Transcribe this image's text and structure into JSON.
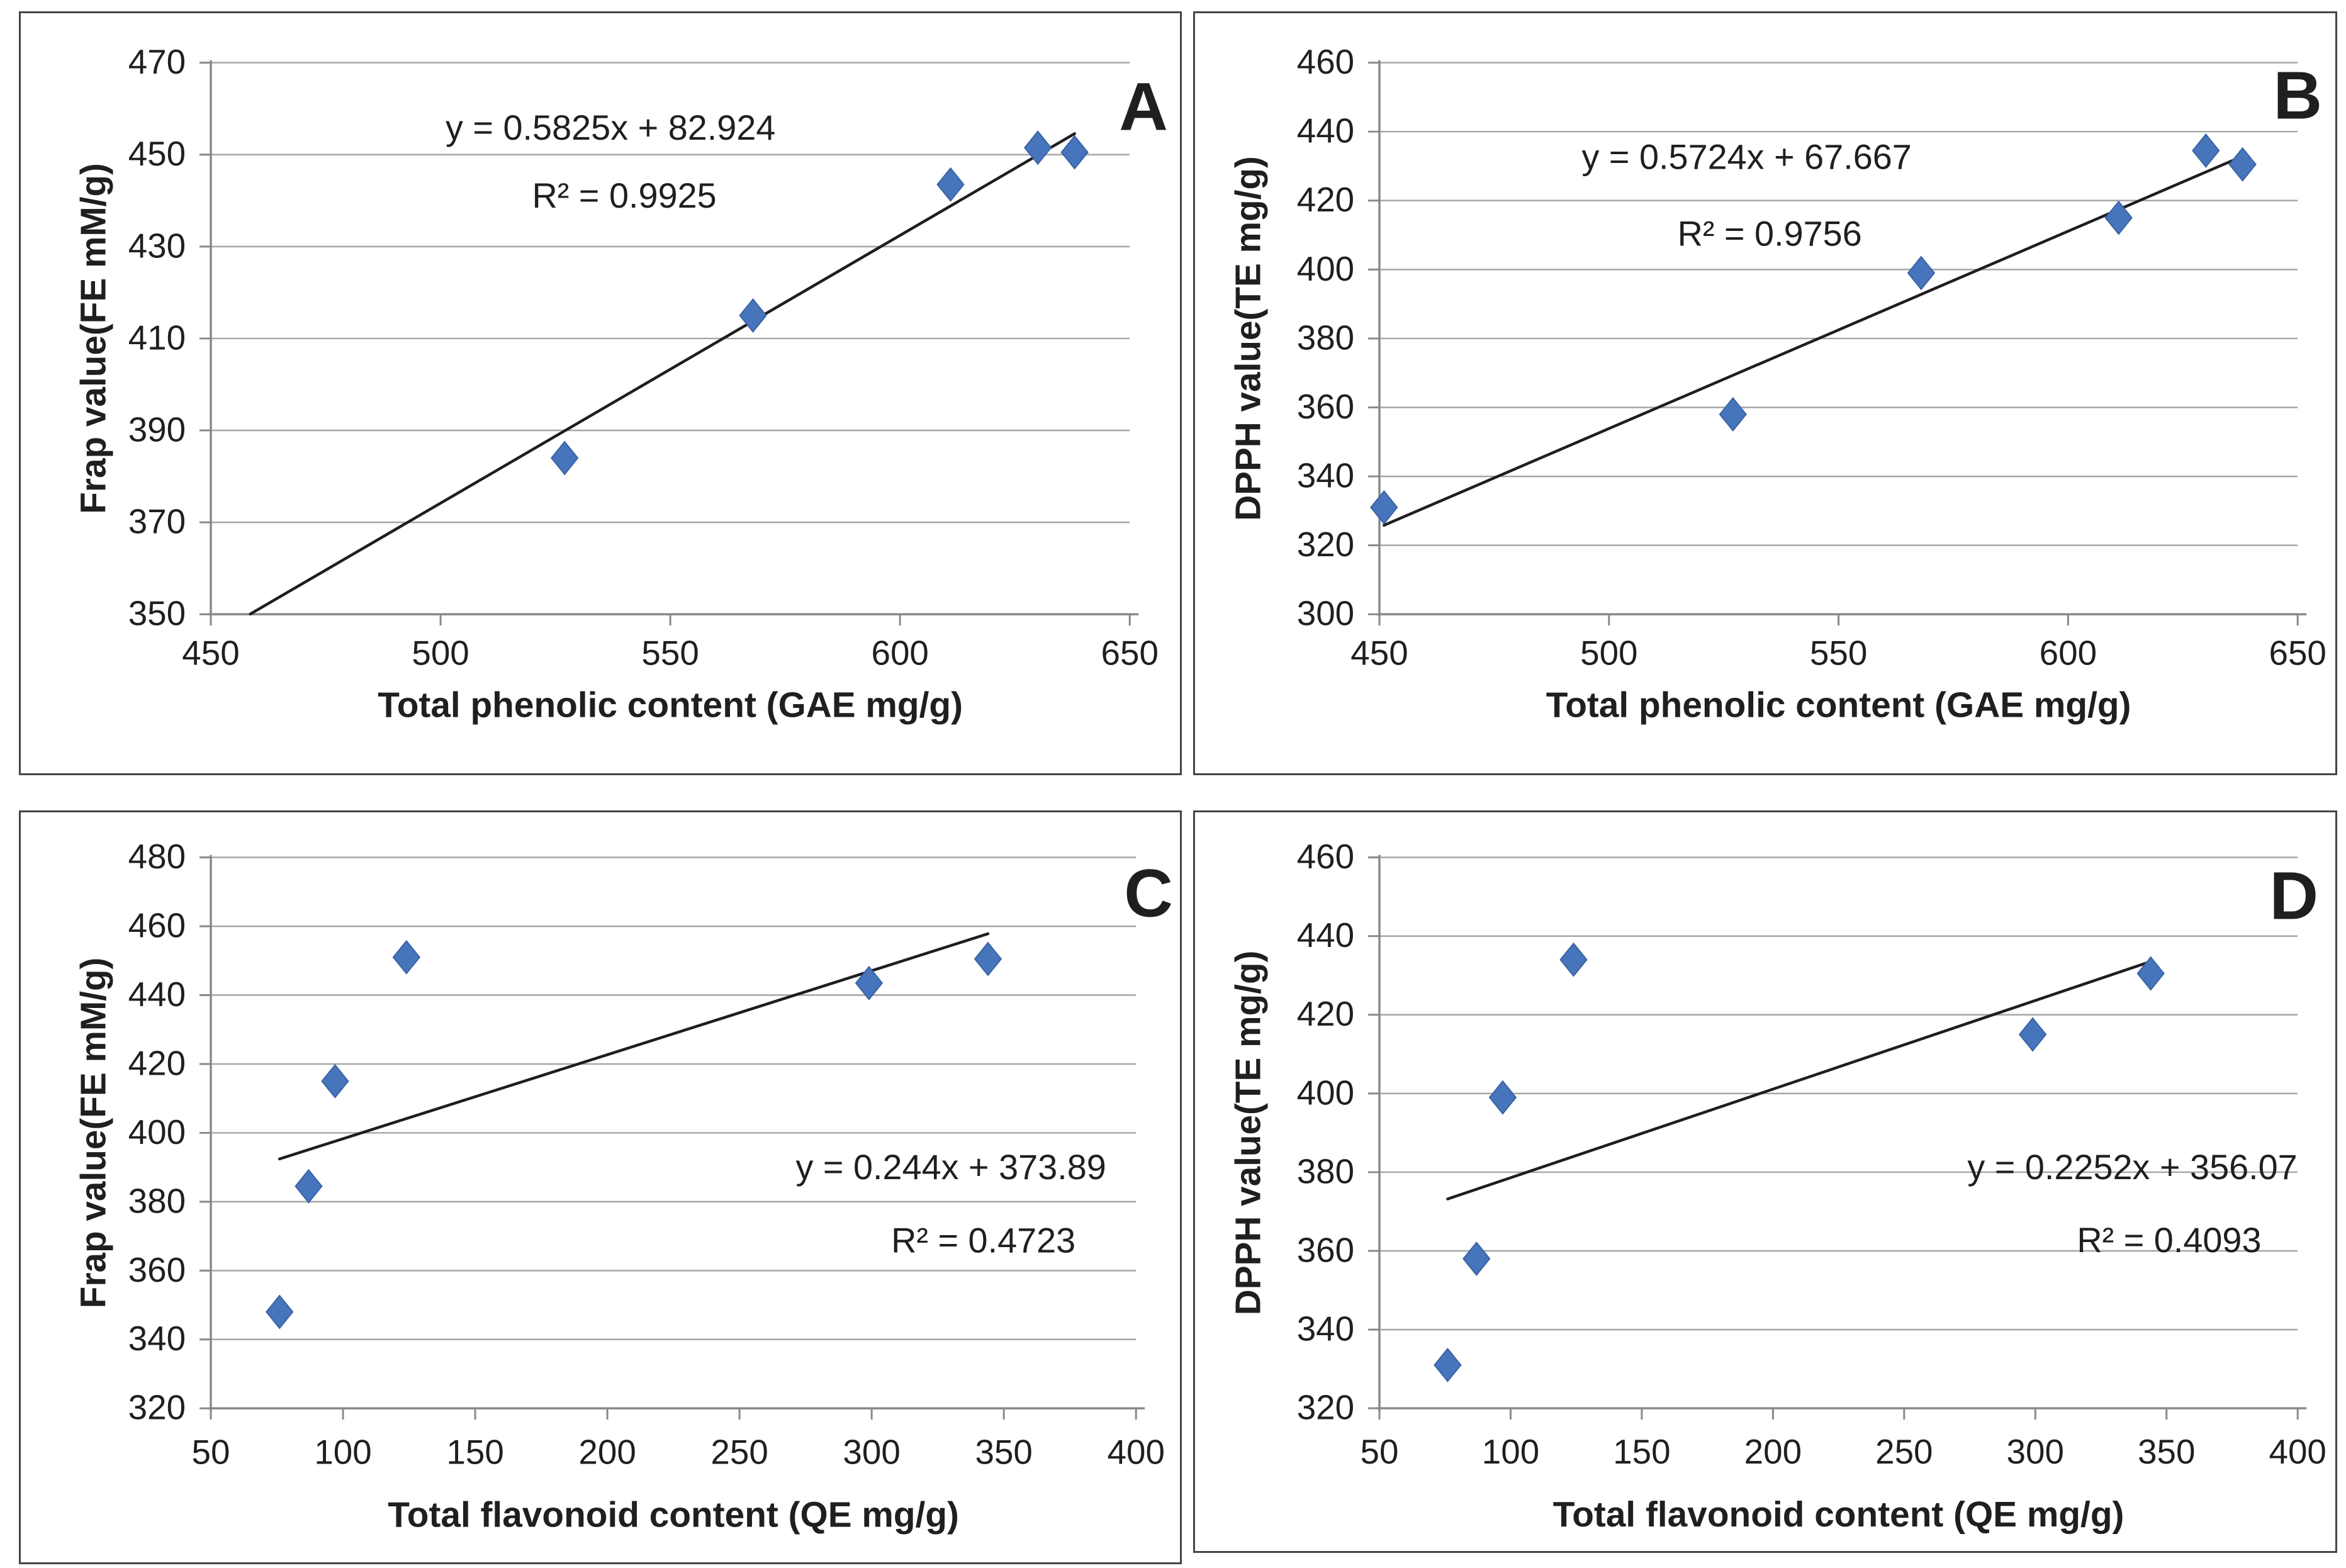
{
  "figure": {
    "background": "#ffffff",
    "description": "Correlation scatter plots between phenolic/flavonoid content and antioxidant activity (FRAP, DPPH)"
  },
  "style": {
    "marker_fill": "#4675BC",
    "marker_stroke": "#3A62A3",
    "gridline_color": "#A6A6A6",
    "axis_color": "#898989",
    "trendline_color": "#1E1E1E",
    "text_color": "#1F1F1F",
    "panel_border_color": "#454545"
  },
  "chart_data": [
    {
      "id": "A",
      "type": "scatter",
      "panel_label": "A",
      "xlabel": "Total phenolic content (GAE mg/g)",
      "ylabel": "Frap value(FE mM/g)",
      "equation": "y = 0.5825x + 82.924",
      "r_squared": "R² = 0.9925",
      "x_ticks": [
        450,
        500,
        550,
        600,
        650
      ],
      "y_ticks": [
        350,
        370,
        390,
        410,
        430,
        450,
        470
      ],
      "xlim": [
        450,
        650
      ],
      "ylim": [
        350,
        470
      ],
      "grid": "horizontal",
      "legend": "none",
      "points": [
        [
          527,
          384
        ],
        [
          568,
          415
        ],
        [
          611,
          443.5
        ],
        [
          630,
          451.5
        ],
        [
          638,
          450.5
        ]
      ],
      "trend": {
        "slope": 0.5825,
        "intercept": 82.924,
        "x1": 458.6,
        "x2": 638
      }
    },
    {
      "id": "B",
      "type": "scatter",
      "panel_label": "B",
      "xlabel": "Total phenolic content (GAE mg/g)",
      "ylabel": "DPPH value(TE mg/g)",
      "equation": "y = 0.5724x + 67.667",
      "r_squared": "R² = 0.9756",
      "x_ticks": [
        450,
        500,
        550,
        600,
        650
      ],
      "y_ticks": [
        300,
        320,
        340,
        360,
        380,
        400,
        420,
        440,
        460
      ],
      "xlim": [
        450,
        650
      ],
      "ylim": [
        300,
        460
      ],
      "grid": "horizontal",
      "legend": "none",
      "points": [
        [
          451,
          331
        ],
        [
          527,
          358
        ],
        [
          568,
          399
        ],
        [
          611,
          415
        ],
        [
          630,
          434.5
        ],
        [
          638,
          430.5
        ]
      ],
      "trend": {
        "slope": 0.5724,
        "intercept": 67.667,
        "x1": 451,
        "x2": 638
      }
    },
    {
      "id": "C",
      "type": "scatter",
      "panel_label": "C",
      "xlabel": "Total flavonoid content (QE mg/g)",
      "ylabel": "Frap value(FE mM/g)",
      "equation": "y = 0.244x + 373.89",
      "r_squared": "R² = 0.4723",
      "x_ticks": [
        50,
        100,
        150,
        200,
        250,
        300,
        350,
        400
      ],
      "y_ticks": [
        320,
        340,
        360,
        380,
        400,
        420,
        440,
        460,
        480
      ],
      "xlim": [
        50,
        400
      ],
      "ylim": [
        320,
        480
      ],
      "grid": "horizontal",
      "legend": "none",
      "points": [
        [
          76,
          348
        ],
        [
          87,
          384.5
        ],
        [
          97,
          415
        ],
        [
          124,
          451
        ],
        [
          299,
          443.5
        ],
        [
          344,
          450.5
        ]
      ],
      "trend": {
        "slope": 0.244,
        "intercept": 373.89,
        "x1": 76,
        "x2": 344
      }
    },
    {
      "id": "D",
      "type": "scatter",
      "panel_label": "D",
      "xlabel": "Total flavonoid content (QE mg/g)",
      "ylabel": "DPPH value(TE mg/g)",
      "equation": "y = 0.2252x + 356.07",
      "r_squared": "R² = 0.4093",
      "x_ticks": [
        50,
        100,
        150,
        200,
        250,
        300,
        350,
        400
      ],
      "y_ticks": [
        320,
        340,
        360,
        380,
        400,
        420,
        440,
        460
      ],
      "xlim": [
        50,
        400
      ],
      "ylim": [
        320,
        460
      ],
      "grid": "horizontal",
      "legend": "none",
      "points": [
        [
          76,
          331
        ],
        [
          87,
          358
        ],
        [
          97,
          399
        ],
        [
          124,
          434
        ],
        [
          299,
          415
        ],
        [
          344,
          430.5
        ]
      ],
      "trend": {
        "slope": 0.2252,
        "intercept": 356.07,
        "x1": 76,
        "x2": 344
      }
    }
  ]
}
